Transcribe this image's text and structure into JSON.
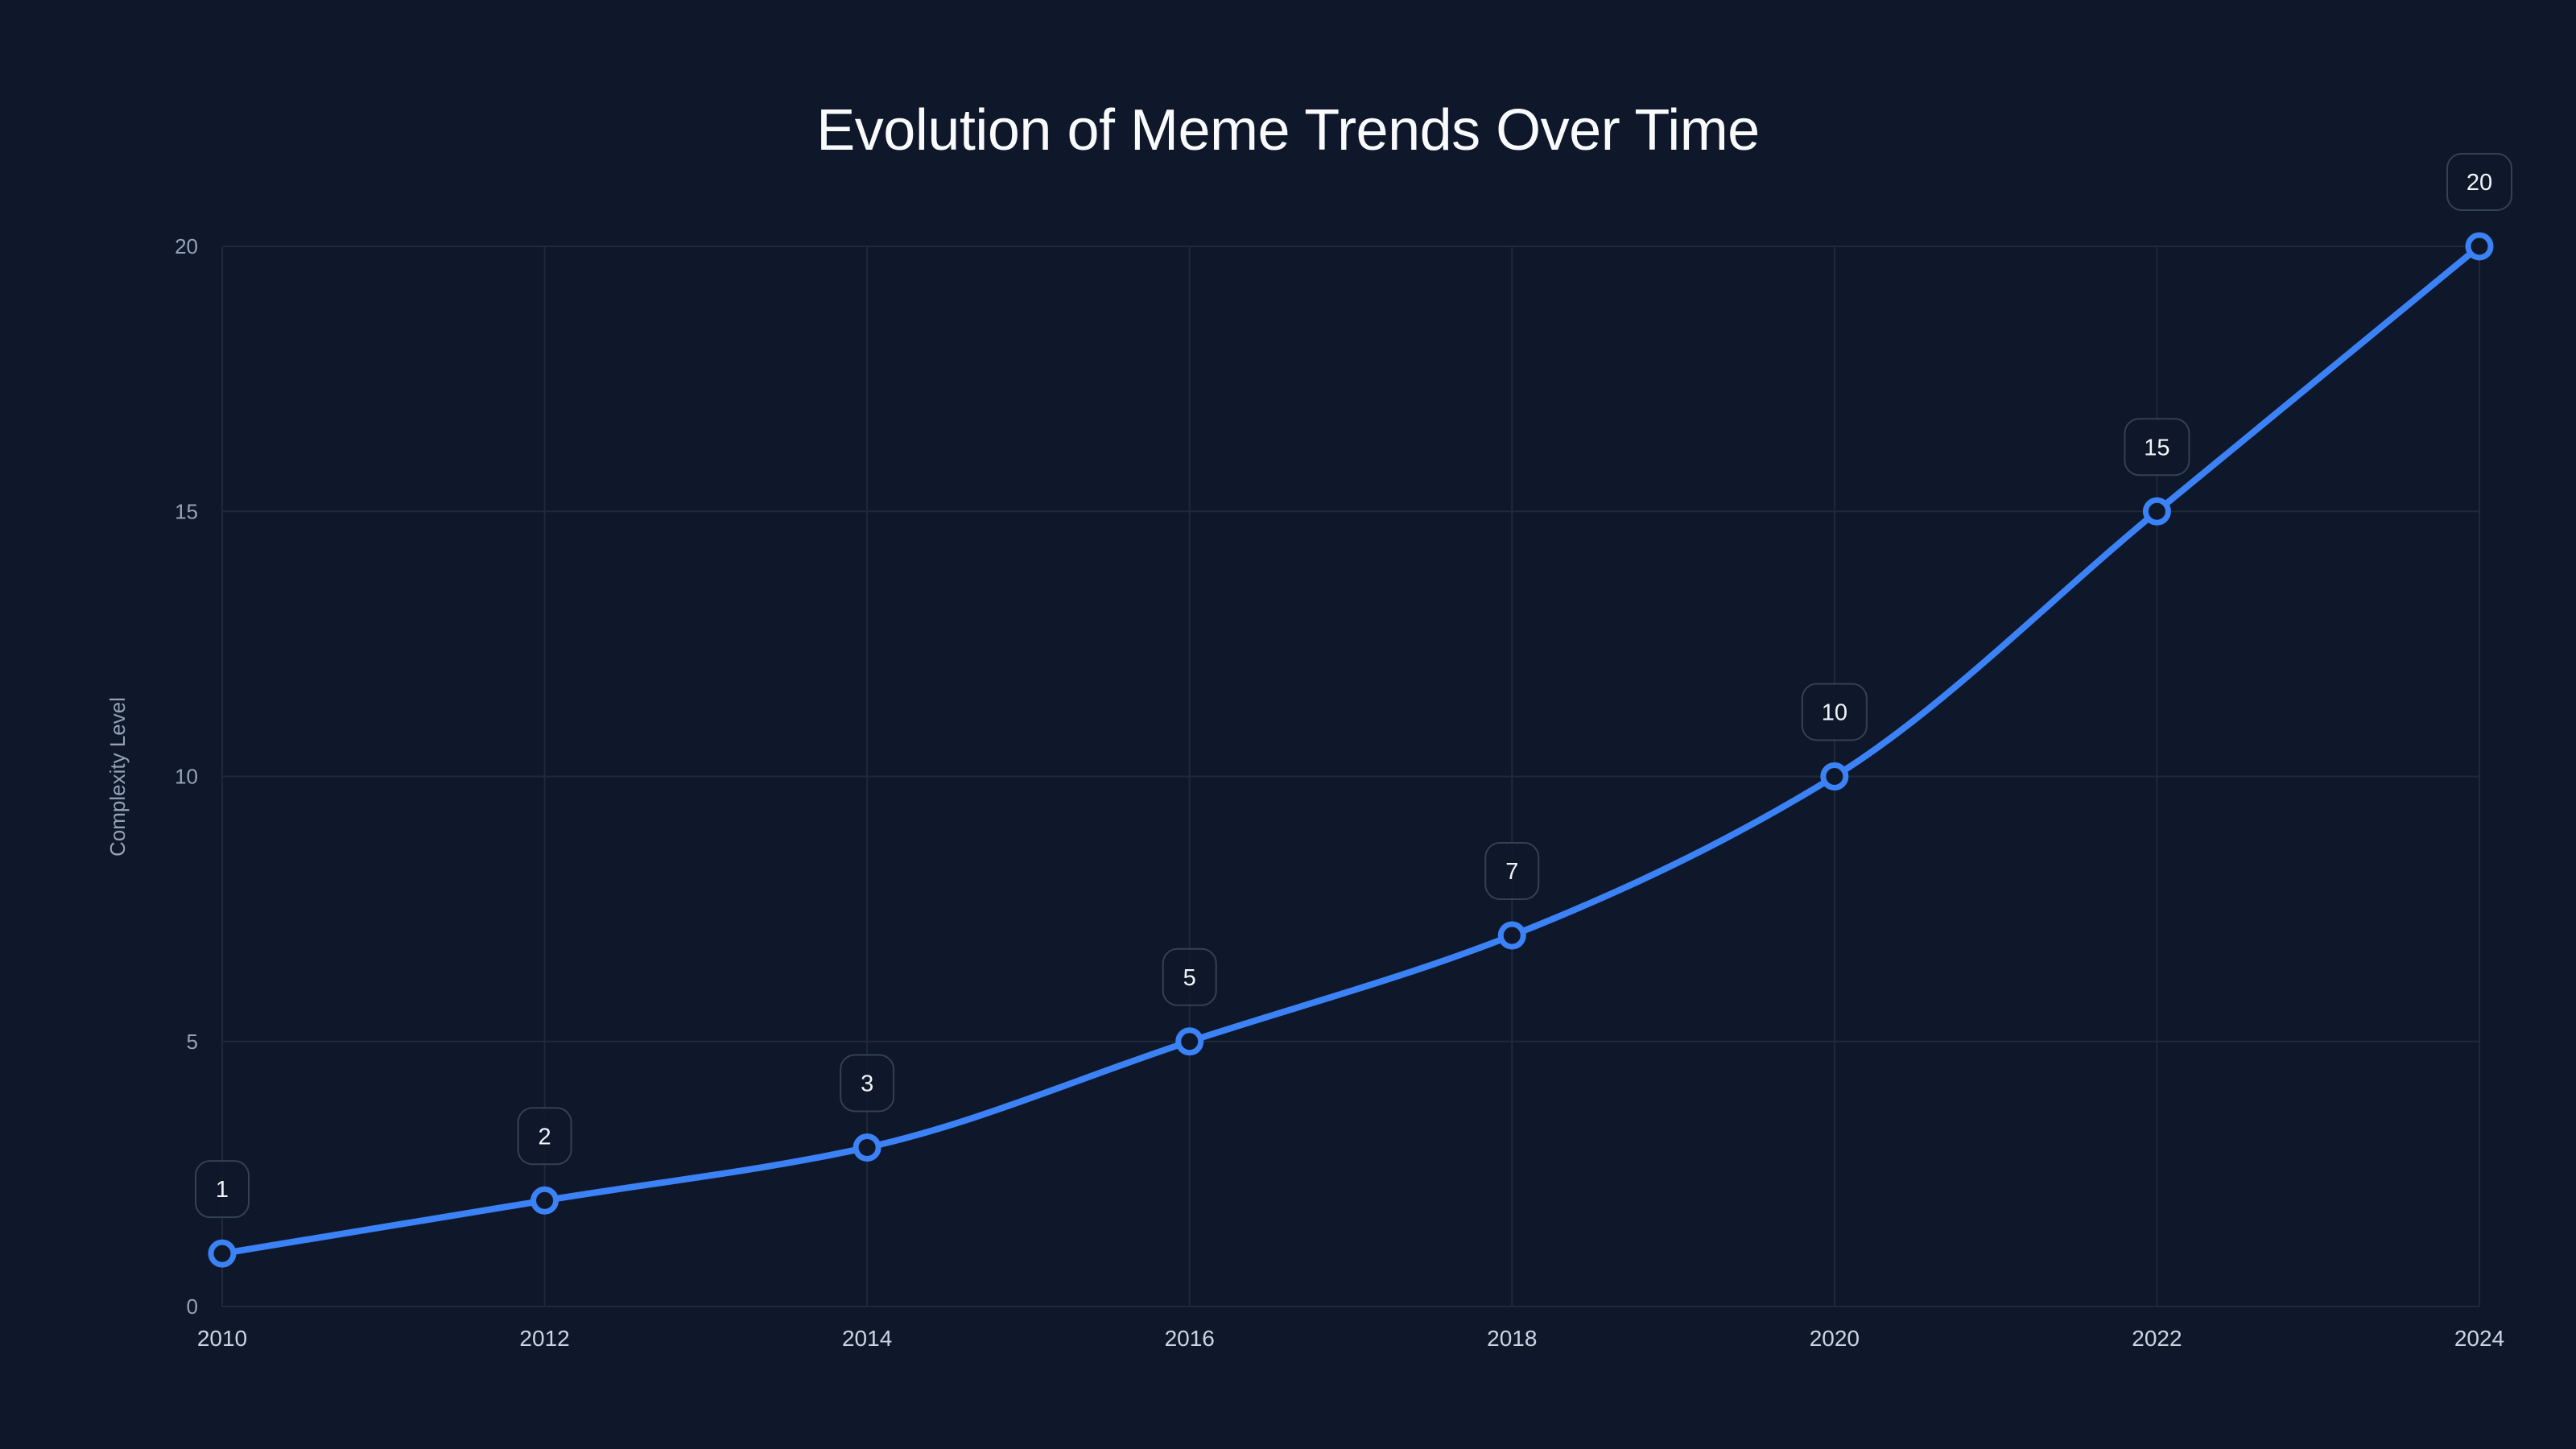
{
  "chart_data": {
    "type": "line",
    "title": "Evolution of Meme Trends Over Time",
    "xlabel": "",
    "ylabel": "Complexity Level",
    "x": [
      2010,
      2012,
      2014,
      2016,
      2018,
      2020,
      2022,
      2024
    ],
    "categories": [
      "2010",
      "2012",
      "2014",
      "2016",
      "2018",
      "2020",
      "2022",
      "2024"
    ],
    "series": [
      {
        "name": "Complexity Level",
        "values": [
          1,
          2,
          3,
          5,
          7,
          10,
          15,
          20
        ],
        "color": "#3b82f6"
      }
    ],
    "ylim": [
      0,
      20
    ],
    "yticks": [
      0,
      5,
      10,
      15,
      20
    ],
    "xlim": [
      2010,
      2024
    ],
    "grid": true,
    "legend": "none",
    "data_labels": true,
    "interpolation": "smooth"
  },
  "colors": {
    "background": "#0f172a",
    "line": "#3b82f6",
    "grid": "#1e293b",
    "label_border": "#334155",
    "label_bg": "#0f172a"
  }
}
